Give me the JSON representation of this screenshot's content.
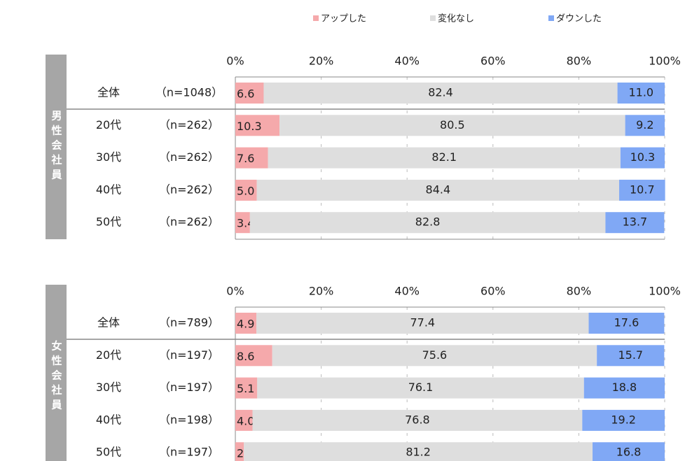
{
  "chart_data": [
    {
      "type": "stacked-bar-h",
      "group_label": "男性会社員",
      "categories": [
        "全体",
        "20代",
        "30代",
        "40代",
        "50代"
      ],
      "sample_sizes": [
        "（n=1048）",
        "（n=262）",
        "（n=262）",
        "（n=262）",
        "（n=262）"
      ],
      "xlim": [
        0,
        100
      ],
      "xticks": [
        {
          "value": 0,
          "label": "0%"
        },
        {
          "value": 20,
          "label": "20%"
        },
        {
          "value": 40,
          "label": "40%"
        },
        {
          "value": 60,
          "label": "60%"
        },
        {
          "value": 80,
          "label": "80%"
        },
        {
          "value": 100,
          "label": "100%"
        }
      ],
      "grid": true,
      "series": [
        {
          "name": "アップした",
          "color": "#f5a9ab",
          "values": [
            6.6,
            10.3,
            7.6,
            5.0,
            3.4
          ],
          "value_labels": [
            "6.6",
            "10.3",
            "7.6",
            "5.0",
            "3.4"
          ]
        },
        {
          "name": "変化なし",
          "color": "#dedede",
          "values": [
            82.4,
            80.5,
            82.1,
            84.4,
            82.8
          ],
          "value_labels": [
            "82.4",
            "80.5",
            "82.1",
            "84.4",
            "82.8"
          ]
        },
        {
          "name": "ダウンした",
          "color": "#80a8f5",
          "values": [
            11.0,
            9.2,
            10.3,
            10.7,
            13.7
          ],
          "value_labels": [
            "11.0",
            "9.2",
            "10.3",
            "10.7",
            "13.7"
          ]
        }
      ]
    },
    {
      "type": "stacked-bar-h",
      "group_label": "女性会社員",
      "categories": [
        "全体",
        "20代",
        "30代",
        "40代",
        "50代"
      ],
      "sample_sizes": [
        "（n=789）",
        "（n=197）",
        "（n=197）",
        "（n=198）",
        "（n=197）"
      ],
      "xlim": [
        0,
        100
      ],
      "xticks": [
        {
          "value": 0,
          "label": "0%"
        },
        {
          "value": 20,
          "label": "20%"
        },
        {
          "value": 40,
          "label": "40%"
        },
        {
          "value": 60,
          "label": "60%"
        },
        {
          "value": 80,
          "label": "80%"
        },
        {
          "value": 100,
          "label": "100%"
        }
      ],
      "grid": true,
      "series": [
        {
          "color": "#f5a9ab",
          "values": [
            4.9,
            8.6,
            5.1,
            4.0,
            2.0
          ],
          "value_labels": [
            "4.9",
            "8.6",
            "5.1",
            "4.0",
            "2.0"
          ]
        },
        {
          "color": "#dedede",
          "values": [
            77.4,
            75.6,
            76.1,
            76.8,
            81.2
          ],
          "value_labels": [
            "77.4",
            "75.6",
            "76.1",
            "76.8",
            "81.2"
          ]
        },
        {
          "color": "#80a8f5",
          "values": [
            17.6,
            15.7,
            18.8,
            19.2,
            16.8
          ],
          "value_labels": [
            "17.6",
            "15.7",
            "18.8",
            "19.2",
            "16.8"
          ]
        }
      ]
    }
  ]
}
